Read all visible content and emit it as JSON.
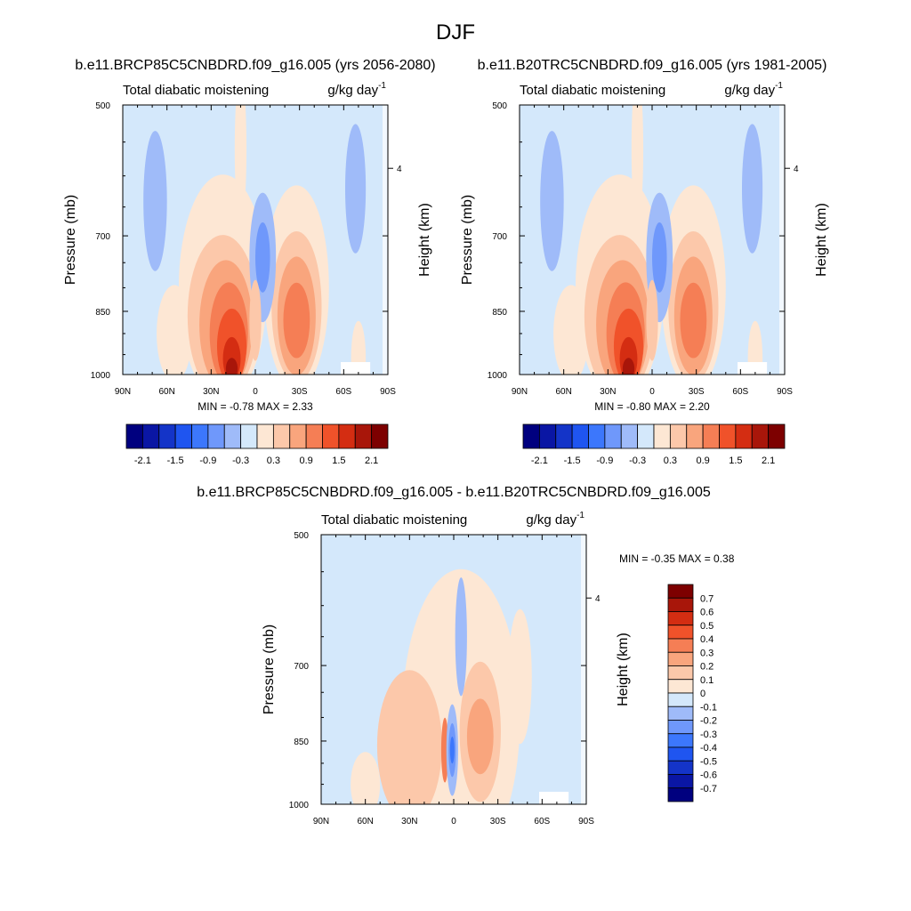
{
  "figure": {
    "title": "DJF",
    "colors": {
      "bg_field": "#d4e8fb",
      "scale": [
        "#00007f",
        "#0a16a4",
        "#1434c8",
        "#1f55f0",
        "#3c77fc",
        "#6f98fb",
        "#9fbbf9",
        "#d4e8fb",
        "#fde7d4",
        "#fcc8aa",
        "#f9a57d",
        "#f57e55",
        "#f0522a",
        "#d42d12",
        "#a8160a",
        "#7d0000"
      ]
    }
  },
  "panels": [
    {
      "id": "p1",
      "title": "b.e11.BRCP85C5CNBDRD.f09_g16.005 (yrs 2056-2080)",
      "left_label": "Total diabatic moistening",
      "units_label": "g/kg day",
      "units_sup": "-1",
      "ylabel": "Pressure (mb)",
      "ylabel_right": "Height (km)",
      "minmax": "MIN =  -0.78  MAX =   2.33",
      "yticks": [
        "500",
        "700",
        "850",
        "1000"
      ],
      "xticks": [
        "90N",
        "60N",
        "30N",
        "0",
        "30S",
        "60S",
        "90S"
      ],
      "height_tick": "4",
      "colorbar_labels": [
        "-2.1",
        "-1.5",
        "-0.9",
        "-0.3",
        "0.3",
        "0.9",
        "1.5",
        "2.1"
      ]
    },
    {
      "id": "p2",
      "title": "b.e11.B20TRC5CNBDRD.f09_g16.005 (yrs 1981-2005)",
      "left_label": "Total diabatic moistening",
      "units_label": "g/kg day",
      "units_sup": "-1",
      "ylabel": "Pressure (mb)",
      "ylabel_right": "Height (km)",
      "minmax": "MIN =  -0.80  MAX =   2.20",
      "yticks": [
        "500",
        "700",
        "850",
        "1000"
      ],
      "xticks": [
        "90N",
        "60N",
        "30N",
        "0",
        "30S",
        "60S",
        "90S"
      ],
      "height_tick": "4",
      "colorbar_labels": [
        "-2.1",
        "-1.5",
        "-0.9",
        "-0.3",
        "0.3",
        "0.9",
        "1.5",
        "2.1"
      ]
    },
    {
      "id": "p3",
      "title": "b.e11.BRCP85C5CNBDRD.f09_g16.005 - b.e11.B20TRC5CNBDRD.f09_g16.005",
      "left_label": "Total diabatic moistening",
      "units_label": "g/kg day",
      "units_sup": "-1",
      "ylabel": "Pressure (mb)",
      "ylabel_right": "Height (km)",
      "minmax": "MIN =  -0.35  MAX =   0.38",
      "yticks": [
        "500",
        "700",
        "850",
        "1000"
      ],
      "xticks": [
        "90N",
        "60N",
        "30N",
        "0",
        "30S",
        "60S",
        "90S"
      ],
      "height_tick": "4",
      "colorbar_labels": [
        "0.7",
        "0.6",
        "0.5",
        "0.4",
        "0.3",
        "0.2",
        "0.1",
        "0",
        "-0.1",
        "-0.2",
        "-0.3",
        "-0.4",
        "-0.5",
        "-0.6",
        "-0.7"
      ]
    }
  ],
  "chart_data": [
    {
      "type": "heatmap",
      "title": "b.e11.BRCP85C5CNBDRD.f09_g16.005 (yrs 2056-2080)",
      "xlabel": "",
      "ylabel": "Pressure (mb)",
      "x_range": [
        "90N",
        "90S"
      ],
      "y_range": [
        1000,
        500
      ],
      "levels": [
        -2.1,
        -1.8,
        -1.5,
        -1.2,
        -0.9,
        -0.6,
        -0.3,
        0,
        0.3,
        0.6,
        0.9,
        1.2,
        1.5,
        1.8,
        2.1
      ],
      "min": -0.78,
      "max": 2.33,
      "features": [
        {
          "lat": 20,
          "p": 950,
          "value": 2.3
        },
        {
          "lat": -25,
          "p": 870,
          "value": 1.4
        },
        {
          "lat": -5,
          "p": 720,
          "value": -0.6
        },
        {
          "lat": 60,
          "p": 580,
          "value": -0.3
        },
        {
          "lat": -60,
          "p": 600,
          "value": -0.3
        }
      ]
    },
    {
      "type": "heatmap",
      "title": "b.e11.B20TRC5CNBDRD.f09_g16.005 (yrs 1981-2005)",
      "xlabel": "",
      "ylabel": "Pressure (mb)",
      "x_range": [
        "90N",
        "90S"
      ],
      "y_range": [
        1000,
        500
      ],
      "levels": [
        -2.1,
        -1.8,
        -1.5,
        -1.2,
        -0.9,
        -0.6,
        -0.3,
        0,
        0.3,
        0.6,
        0.9,
        1.2,
        1.5,
        1.8,
        2.1
      ],
      "min": -0.8,
      "max": 2.2,
      "features": [
        {
          "lat": 20,
          "p": 950,
          "value": 2.2
        },
        {
          "lat": -25,
          "p": 870,
          "value": 1.3
        },
        {
          "lat": -5,
          "p": 720,
          "value": -0.6
        },
        {
          "lat": 60,
          "p": 580,
          "value": -0.3
        },
        {
          "lat": -60,
          "p": 600,
          "value": -0.3
        }
      ]
    },
    {
      "type": "heatmap",
      "title": "b.e11.BRCP85C5CNBDRD.f09_g16.005 - b.e11.B20TRC5CNBDRD.f09_g16.005",
      "xlabel": "",
      "ylabel": "Pressure (mb)",
      "x_range": [
        "90N",
        "90S"
      ],
      "y_range": [
        1000,
        500
      ],
      "levels": [
        -0.7,
        -0.6,
        -0.5,
        -0.4,
        -0.3,
        -0.2,
        -0.1,
        0,
        0.1,
        0.2,
        0.3,
        0.4,
        0.5,
        0.6,
        0.7
      ],
      "min": -0.35,
      "max": 0.38,
      "features": [
        {
          "lat": 0,
          "p": 870,
          "value": -0.35
        },
        {
          "lat": 6,
          "p": 880,
          "value": 0.38
        },
        {
          "lat": -15,
          "p": 840,
          "value": 0.25
        },
        {
          "lat": 25,
          "p": 850,
          "value": 0.15
        }
      ]
    }
  ]
}
